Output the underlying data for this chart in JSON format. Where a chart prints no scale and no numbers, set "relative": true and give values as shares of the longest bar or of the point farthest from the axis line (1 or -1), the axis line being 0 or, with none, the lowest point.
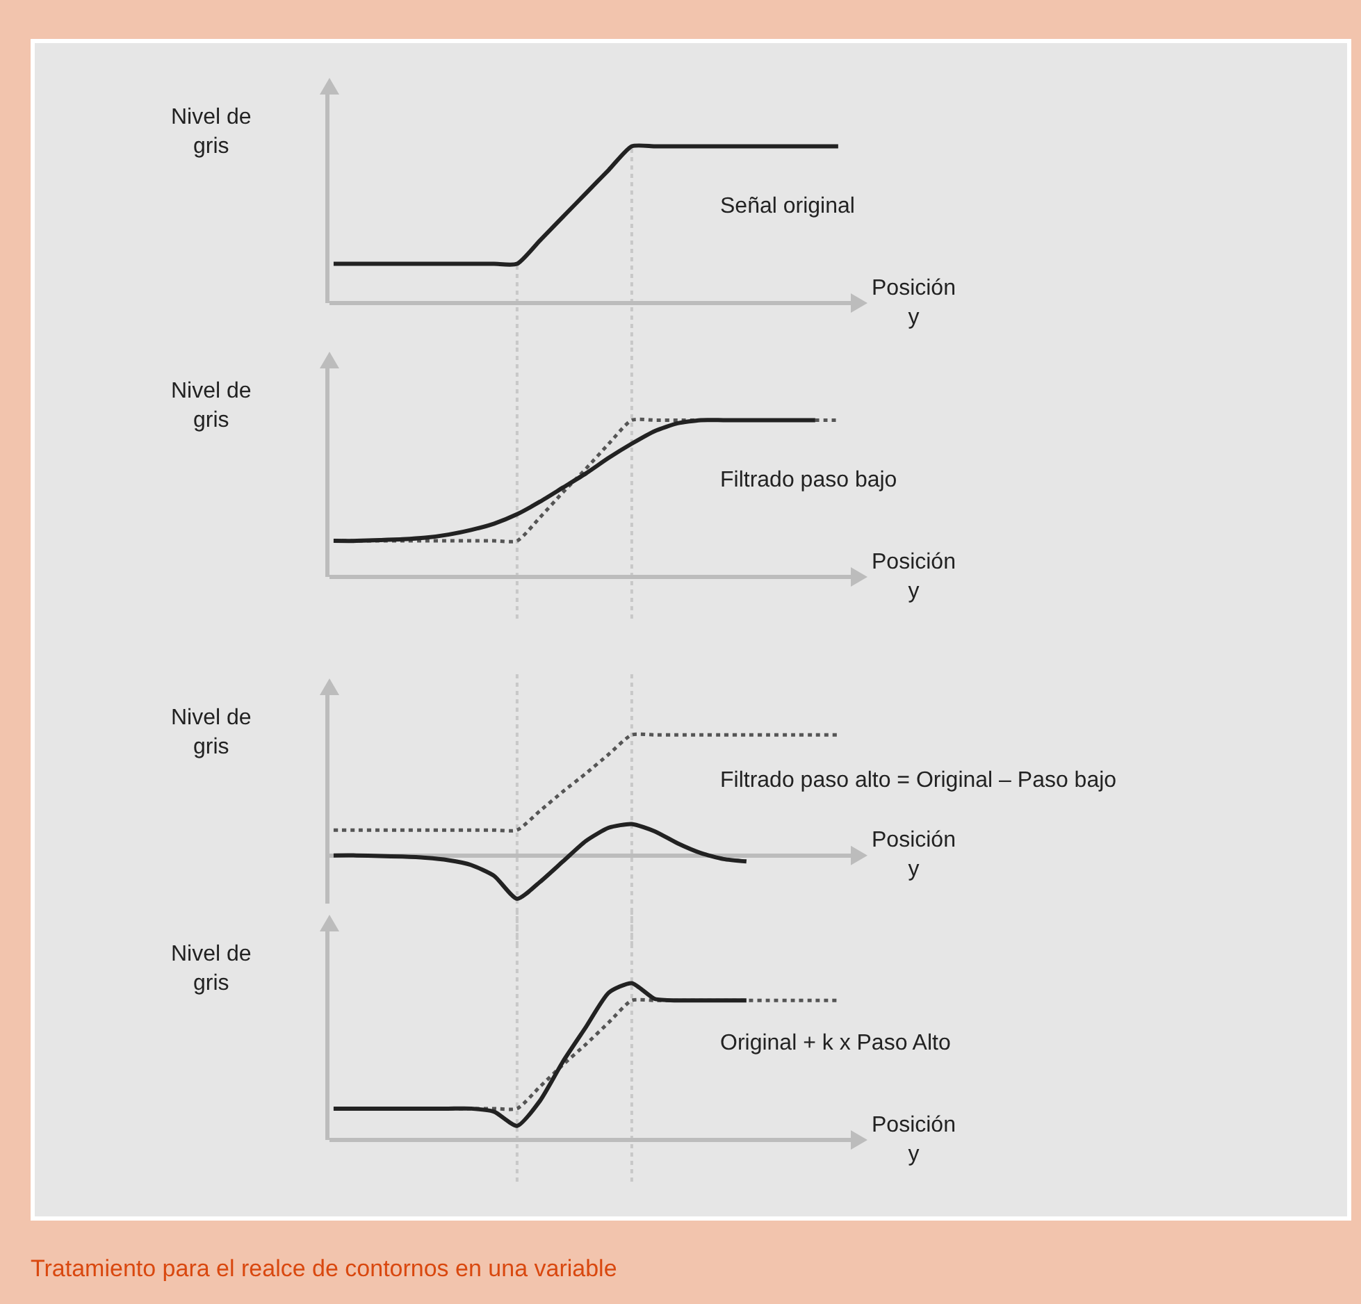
{
  "chart_data": [
    {
      "type": "line",
      "relative": true,
      "ylabel": "Nivel de gris",
      "xlabel": "Posición y",
      "marker": "none",
      "legend": false,
      "categories": [
        null,
        null,
        null,
        null,
        null,
        null,
        null,
        null,
        null,
        null,
        null,
        null,
        null,
        null,
        null,
        null,
        null,
        null,
        null,
        null,
        null,
        null,
        null
      ],
      "series": [
        {
          "name": "Señal original",
          "color": "#222222",
          "line_style": "solid",
          "values": [
            0.25,
            0.25,
            0.25,
            0.25,
            0.25,
            0.25,
            0.25,
            0.25,
            0.25,
            0.4,
            0.55,
            0.7,
            0.85,
            1,
            1,
            1,
            1,
            1,
            1,
            1,
            1,
            1,
            1
          ]
        }
      ]
    },
    {
      "type": "line",
      "relative": true,
      "ylabel": "Nivel de gris",
      "xlabel": "Posición y",
      "marker": "none",
      "legend": false,
      "categories": [
        null,
        null,
        null,
        null,
        null,
        null,
        null,
        null,
        null,
        null,
        null,
        null,
        null,
        null,
        null,
        null,
        null,
        null,
        null,
        null,
        null,
        null,
        null
      ],
      "series": [
        {
          "color": "#555555",
          "line_style": "dotted",
          "values": [
            0.23,
            0.23,
            0.23,
            0.23,
            0.23,
            0.23,
            0.23,
            0.23,
            0.23,
            0.38,
            0.54,
            0.69,
            0.85,
            1,
            1,
            1,
            1,
            1,
            1,
            1,
            1,
            1,
            1
          ]
        },
        {
          "name": "Filtrado paso bajo",
          "color": "#222222",
          "line_style": "solid",
          "values": [
            0.23,
            0.23,
            0.235,
            0.24,
            0.25,
            0.27,
            0.3,
            0.34,
            0.4,
            0.48,
            0.57,
            0.66,
            0.76,
            0.85,
            0.93,
            0.98,
            1,
            1,
            1,
            1,
            1,
            1,
            null
          ]
        }
      ]
    },
    {
      "type": "line",
      "relative": true,
      "ylabel": "Nivel de gris",
      "xlabel": "Posición y",
      "marker": "none",
      "legend": false,
      "categories": [
        null,
        null,
        null,
        null,
        null,
        null,
        null,
        null,
        null,
        null,
        null,
        null,
        null,
        null,
        null,
        null,
        null,
        null,
        null,
        null,
        null,
        null,
        null
      ],
      "series": [
        {
          "color": "#555555",
          "line_style": "dotted",
          "values": [
            0.21,
            0.21,
            0.21,
            0.21,
            0.21,
            0.21,
            0.21,
            0.21,
            0.21,
            0.37,
            0.53,
            0.68,
            0.84,
            1,
            1,
            1,
            1,
            1,
            1,
            1,
            1,
            1,
            1
          ]
        },
        {
          "name": "Filtrado paso alto = Original – Paso bajo",
          "color": "#222222",
          "line_style": "solid",
          "values": [
            0,
            0,
            -0.005,
            -0.01,
            -0.02,
            -0.04,
            -0.08,
            -0.17,
            -0.36,
            -0.22,
            -0.05,
            0.12,
            0.23,
            0.26,
            0.2,
            0.1,
            0.02,
            -0.03,
            -0.05,
            null,
            null,
            null,
            null
          ]
        }
      ]
    },
    {
      "type": "line",
      "relative": true,
      "ylabel": "Nivel de gris",
      "xlabel": "Posición y",
      "marker": "none",
      "legend": false,
      "categories": [
        null,
        null,
        null,
        null,
        null,
        null,
        null,
        null,
        null,
        null,
        null,
        null,
        null,
        null,
        null,
        null,
        null,
        null,
        null,
        null,
        null,
        null,
        null
      ],
      "annotations": [
        "Tratamiento para el realce de contornos en una variable"
      ],
      "series": [
        {
          "color": "#555555",
          "line_style": "dotted",
          "values": [
            0.2,
            0.2,
            0.2,
            0.2,
            0.2,
            0.2,
            0.2,
            0.2,
            0.2,
            0.34,
            0.48,
            0.61,
            0.75,
            0.89,
            0.89,
            0.89,
            0.89,
            0.89,
            0.89,
            0.89,
            0.89,
            0.89,
            0.89
          ]
        },
        {
          "name": "Original + k x Paso Alto",
          "color": "#222222",
          "line_style": "solid",
          "values": [
            0.2,
            0.2,
            0.2,
            0.2,
            0.2,
            0.2,
            0.2,
            0.18,
            0.09,
            0.25,
            0.5,
            0.72,
            0.94,
            1,
            0.9,
            0.89,
            0.89,
            0.89,
            0.89,
            null,
            null,
            null,
            null
          ]
        }
      ]
    }
  ]
}
